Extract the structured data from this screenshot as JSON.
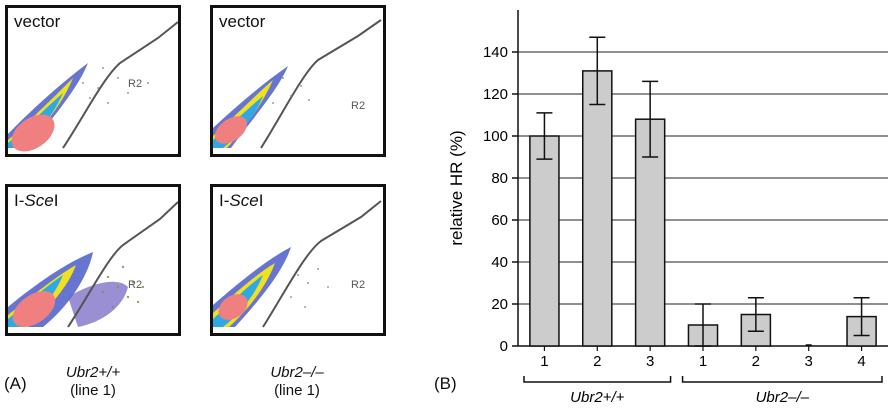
{
  "panel_a": {
    "part_label": "(A)",
    "gate_label": "R2",
    "panels": [
      {
        "label": "vector",
        "label_italic": "",
        "label_suffix": ""
      },
      {
        "label": "vector",
        "label_italic": "",
        "label_suffix": ""
      },
      {
        "label": "I-",
        "label_italic": "Sce",
        "label_suffix": "I"
      },
      {
        "label": "I-",
        "label_italic": "Sce",
        "label_suffix": "I"
      }
    ],
    "genotypes": [
      {
        "name": "Ubr2+/+",
        "line": "(line 1)"
      },
      {
        "name": "Ubr2–/–",
        "line": "(line 1)"
      }
    ]
  },
  "panel_b": {
    "part_label": "(B)",
    "group_labels": [
      "Ubr2+/+",
      "Ubr2–/–"
    ]
  },
  "chart_data": {
    "type": "bar",
    "ylabel": "relative HR (%)",
    "xlabel": "",
    "ylim": [
      0,
      160
    ],
    "yticks": [
      0,
      20,
      40,
      60,
      80,
      100,
      120,
      140
    ],
    "grid": true,
    "categories": [
      "1",
      "2",
      "3",
      "1",
      "2",
      "3",
      "4"
    ],
    "groups": [
      {
        "label": "Ubr2+/+",
        "indices": [
          0,
          1,
          2
        ]
      },
      {
        "label": "Ubr2–/–",
        "indices": [
          3,
          4,
          5,
          6
        ]
      }
    ],
    "values": [
      100,
      131,
      108,
      10,
      15,
      0,
      14
    ],
    "errors": [
      11,
      16,
      18,
      10,
      8,
      0,
      9
    ],
    "bar_color": "#cccccc",
    "bar_edge_color": "#111111"
  }
}
